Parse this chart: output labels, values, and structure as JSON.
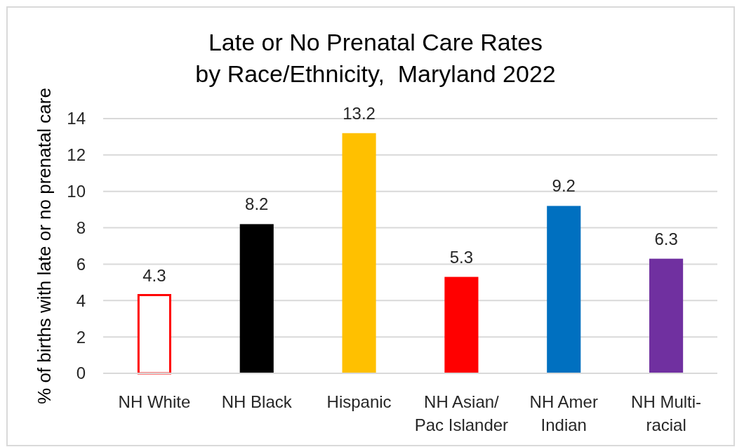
{
  "chart_data": {
    "type": "bar",
    "title": "Late or No Prenatal Care Rates\nby Race/Ethnicity,  Maryland 2022",
    "ylabel": "% of births with late or no prenatal care",
    "categories": [
      "NH White",
      "NH Black",
      "Hispanic",
      "NH Asian/\nPac Islander",
      "NH Amer\nIndian",
      "NH Multi-\nracial"
    ],
    "values": [
      4.3,
      8.2,
      13.2,
      5.3,
      9.2,
      6.3
    ],
    "colors": [
      "#ff0000",
      "#000000",
      "#ffc000",
      "#ff0000",
      "#0070c0",
      "#7030a0"
    ],
    "ylim": [
      0,
      14
    ],
    "yticks": [
      0,
      2,
      4,
      6,
      8,
      10,
      12,
      14
    ],
    "grid": "y",
    "data_labels": true
  }
}
